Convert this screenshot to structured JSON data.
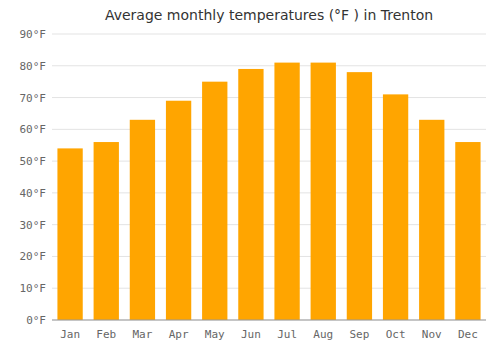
{
  "chart_data": {
    "type": "bar",
    "title": "Average monthly temperatures (°F ) in Trenton",
    "categories": [
      "Jan",
      "Feb",
      "Mar",
      "Apr",
      "May",
      "Jun",
      "Jul",
      "Aug",
      "Sep",
      "Oct",
      "Nov",
      "Dec"
    ],
    "values": [
      54,
      56,
      63,
      69,
      75,
      79,
      81,
      81,
      78,
      71,
      63,
      56
    ],
    "color": "#FFA500",
    "ylim": [
      0,
      90
    ],
    "yticks": [
      {
        "value": 0,
        "label": "0°F"
      },
      {
        "value": 10,
        "label": "10°F"
      },
      {
        "value": 20,
        "label": "20°F"
      },
      {
        "value": 30,
        "label": "30°F"
      },
      {
        "value": 40,
        "label": "40°F"
      },
      {
        "value": 50,
        "label": "50°F"
      },
      {
        "value": 60,
        "label": "60°F"
      },
      {
        "value": 70,
        "label": "70°F"
      },
      {
        "value": 80,
        "label": "80°F"
      },
      {
        "value": 90,
        "label": "90°F"
      }
    ],
    "grid": true
  }
}
